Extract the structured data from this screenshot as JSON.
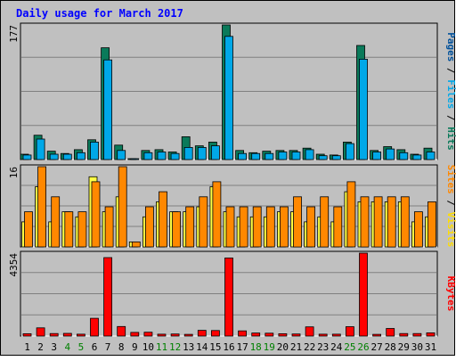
{
  "chart_data": {
    "type": "bar",
    "title": "Daily usage for March 2017",
    "days": [
      "1",
      "2",
      "3",
      "4",
      "5",
      "6",
      "7",
      "8",
      "9",
      "10",
      "11",
      "12",
      "13",
      "14",
      "15",
      "16",
      "17",
      "18",
      "19",
      "20",
      "21",
      "22",
      "23",
      "24",
      "25",
      "26",
      "27",
      "28",
      "29",
      "30",
      "31"
    ],
    "weekend_days": [
      "4",
      "5",
      "11",
      "12",
      "18",
      "19",
      "25",
      "26"
    ],
    "panels": [
      {
        "id": "hits",
        "ymax_label": "177",
        "ymax": 177,
        "axis_label_parts": [
          {
            "text": "Pages",
            "color": "#00509a"
          },
          {
            "text": " / ",
            "color": "#000000"
          },
          {
            "text": "Files",
            "color": "#00a8e8"
          },
          {
            "text": " / ",
            "color": "#000000"
          },
          {
            "text": "Hits",
            "color": "#0a7a5a"
          }
        ],
        "series": [
          {
            "name": "Hits",
            "color": "#0a7a5a",
            "values": [
              7,
              32,
              11,
              8,
              13,
              26,
              147,
              19,
              1,
              12,
              13,
              10,
              30,
              18,
              23,
              177,
              12,
              9,
              11,
              12,
              12,
              15,
              7,
              6,
              23,
              150,
              12,
              17,
              13,
              7,
              15
            ]
          },
          {
            "name": "Files",
            "color": "#00a8e8",
            "values": [
              6,
              27,
              7,
              7,
              9,
              23,
              131,
              12,
              1,
              9,
              10,
              8,
              16,
              16,
              18,
              162,
              8,
              8,
              8,
              10,
              10,
              13,
              5,
              5,
              21,
              132,
              10,
              14,
              9,
              6,
              10
            ]
          },
          {
            "name": "Pages",
            "color": "#00509a",
            "values": [
              0,
              0,
              0,
              0,
              0,
              0,
              0,
              0,
              0,
              0,
              0,
              0,
              0,
              0,
              0,
              0,
              0,
              0,
              0,
              0,
              0,
              0,
              0,
              0,
              0,
              0,
              0,
              0,
              0,
              0,
              0
            ]
          }
        ]
      },
      {
        "id": "visits",
        "ymax_label": "16",
        "ymax": 16,
        "axis_label_parts": [
          {
            "text": "Sites",
            "color": "#ff8800"
          },
          {
            "text": " / ",
            "color": "#000000"
          },
          {
            "text": "Visits",
            "color": "#ffdd00"
          }
        ],
        "series": [
          {
            "name": "Visits",
            "color": "#ffff44",
            "values": [
              5,
              12,
              5,
              7,
              6,
              14,
              7,
              10,
              1,
              6,
              9,
              7,
              7,
              8,
              12,
              7,
              6,
              6,
              6,
              7,
              7,
              5,
              6,
              5,
              11,
              9,
              9,
              9,
              9,
              5,
              6
            ]
          },
          {
            "name": "Sites",
            "color": "#ff8800",
            "values": [
              7,
              16,
              10,
              7,
              7,
              13,
              8,
              16,
              1,
              8,
              11,
              7,
              8,
              10,
              13,
              8,
              8,
              8,
              8,
              8,
              10,
              8,
              10,
              8,
              13,
              10,
              10,
              10,
              10,
              7,
              9
            ]
          }
        ]
      },
      {
        "id": "kbytes",
        "ymax_label": "4354",
        "ymax": 4354,
        "axis_label_parts": [
          {
            "text": "KBytes",
            "color": "#ff0000"
          }
        ],
        "series": [
          {
            "name": "KBytes",
            "color": "#ff0000",
            "values": [
              120,
              430,
              130,
              140,
              100,
              930,
              4120,
              500,
              190,
              200,
              100,
              110,
              90,
              300,
              290,
              4100,
              270,
              160,
              150,
              120,
              110,
              480,
              100,
              100,
              490,
              4354,
              90,
              400,
              130,
              130,
              170
            ]
          }
        ]
      }
    ]
  },
  "colors": {
    "background": "#c0c0c0",
    "frame": "#000000",
    "title": "#0000ff",
    "grid": "#808080",
    "weekday_label": "#000000",
    "weekend_label": "#008000"
  }
}
